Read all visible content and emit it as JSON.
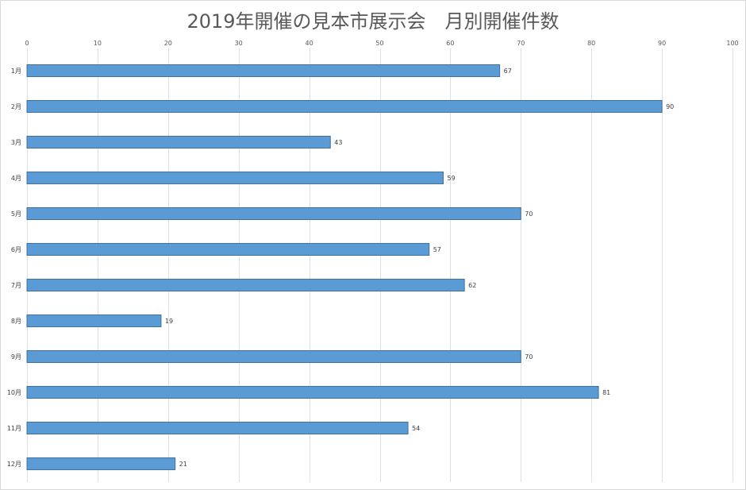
{
  "chart_data": {
    "type": "bar",
    "orientation": "horizontal",
    "title": "2019年開催の見本市展示会　月別開催件数",
    "xlabel": "",
    "ylabel": "",
    "xlim": [
      0,
      100
    ],
    "ticks": [
      0,
      10,
      20,
      30,
      40,
      50,
      60,
      70,
      80,
      90,
      100
    ],
    "tick_labels": [
      "0",
      "10",
      "20",
      "30",
      "40",
      "50",
      "60",
      "70",
      "80",
      "90",
      "100"
    ],
    "axis_position": "top",
    "grid": true,
    "legend": "none",
    "categories": [
      "1月",
      "2月",
      "3月",
      "4月",
      "5月",
      "6月",
      "7月",
      "8月",
      "9月",
      "10月",
      "11月",
      "12月"
    ],
    "values": [
      67,
      90,
      43,
      59,
      70,
      57,
      62,
      19,
      70,
      81,
      54,
      21
    ],
    "value_labels": [
      "67",
      "90",
      "43",
      "59",
      "70",
      "57",
      "62",
      "19",
      "70",
      "81",
      "54",
      "21"
    ],
    "bar_color": "#5b9bd5"
  }
}
